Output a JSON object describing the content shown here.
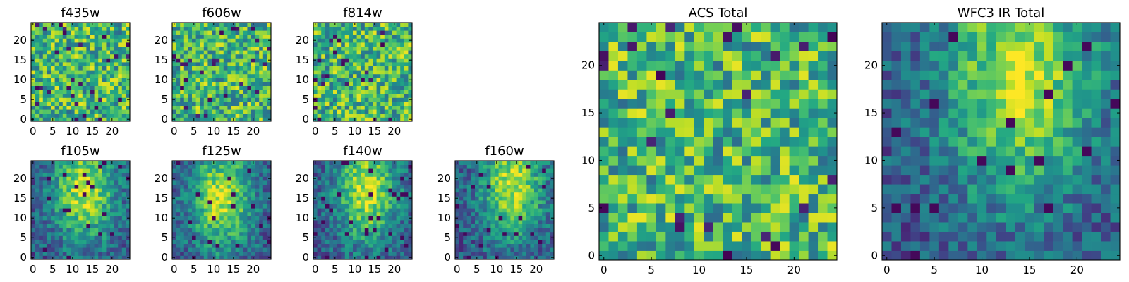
{
  "chart_data": [
    {
      "type": "heatmap",
      "title": "f435w",
      "grid_size": 25,
      "xlim": [
        0,
        24
      ],
      "ylim": [
        0,
        24
      ],
      "x_ticks": [
        0,
        5,
        10,
        15,
        20
      ],
      "y_ticks": [
        0,
        5,
        10,
        15,
        20
      ],
      "colormap": "viridis",
      "spatial_structure": "noise",
      "seed": 11,
      "intensity": "normalized 0-1; dark purple low, yellow high"
    },
    {
      "type": "heatmap",
      "title": "f606w",
      "grid_size": 25,
      "xlim": [
        0,
        24
      ],
      "ylim": [
        0,
        24
      ],
      "x_ticks": [
        0,
        5,
        10,
        15,
        20
      ],
      "y_ticks": [
        0,
        5,
        10,
        15,
        20
      ],
      "colormap": "viridis",
      "spatial_structure": "noise",
      "seed": 23,
      "intensity": "normalized 0-1; dark purple low, yellow high"
    },
    {
      "type": "heatmap",
      "title": "f814w",
      "grid_size": 25,
      "xlim": [
        0,
        24
      ],
      "ylim": [
        0,
        24
      ],
      "x_ticks": [
        0,
        5,
        10,
        15,
        20
      ],
      "y_ticks": [
        0,
        5,
        10,
        15,
        20
      ],
      "colormap": "viridis",
      "spatial_structure": "noise",
      "seed": 37,
      "intensity": "normalized 0-1; dark purple low, yellow high"
    },
    {
      "type": "heatmap",
      "title": "f105w",
      "grid_size": 25,
      "xlim": [
        0,
        24
      ],
      "ylim": [
        0,
        24
      ],
      "x_ticks": [
        0,
        5,
        10,
        15,
        20
      ],
      "y_ticks": [
        0,
        5,
        10,
        15,
        20
      ],
      "colormap": "viridis",
      "spatial_structure": "smooth source",
      "source_center": [
        13,
        17
      ],
      "seed": 41,
      "intensity": "normalized 0-1; dark purple low, yellow high"
    },
    {
      "type": "heatmap",
      "title": "f125w",
      "grid_size": 25,
      "xlim": [
        0,
        24
      ],
      "ylim": [
        0,
        24
      ],
      "x_ticks": [
        0,
        5,
        10,
        15,
        20
      ],
      "y_ticks": [
        0,
        5,
        10,
        15,
        20
      ],
      "colormap": "viridis",
      "spatial_structure": "smooth source",
      "source_center": [
        12,
        15
      ],
      "seed": 53,
      "intensity": "normalized 0-1; dark purple low, yellow high"
    },
    {
      "type": "heatmap",
      "title": "f140w",
      "grid_size": 25,
      "xlim": [
        0,
        24
      ],
      "ylim": [
        0,
        24
      ],
      "x_ticks": [
        0,
        5,
        10,
        15,
        20
      ],
      "y_ticks": [
        0,
        5,
        10,
        15,
        20
      ],
      "colormap": "viridis",
      "spatial_structure": "smooth source",
      "source_center": [
        13,
        17
      ],
      "seed": 67,
      "intensity": "normalized 0-1; dark purple low, yellow high"
    },
    {
      "type": "heatmap",
      "title": "f160w",
      "grid_size": 25,
      "xlim": [
        0,
        24
      ],
      "ylim": [
        0,
        24
      ],
      "x_ticks": [
        0,
        5,
        10,
        15,
        20
      ],
      "y_ticks": [
        0,
        5,
        10,
        15,
        20
      ],
      "colormap": "viridis",
      "spatial_structure": "smooth source",
      "source_center": [
        14,
        18
      ],
      "seed": 79,
      "intensity": "normalized 0-1; dark purple low, yellow high"
    },
    {
      "type": "heatmap",
      "title": "ACS Total",
      "grid_size": 25,
      "xlim": [
        0,
        24
      ],
      "ylim": [
        0,
        24
      ],
      "x_ticks": [
        0,
        5,
        10,
        15,
        20
      ],
      "y_ticks": [
        0,
        5,
        10,
        15,
        20
      ],
      "colormap": "viridis",
      "spatial_structure": "noise",
      "seed": 97,
      "intensity": "normalized 0-1; dark purple low, yellow high"
    },
    {
      "type": "heatmap",
      "title": "WFC3 IR Total",
      "grid_size": 25,
      "xlim": [
        0,
        24
      ],
      "ylim": [
        0,
        24
      ],
      "x_ticks": [
        0,
        5,
        10,
        15,
        20
      ],
      "y_ticks": [
        0,
        5,
        10,
        15,
        20
      ],
      "colormap": "viridis",
      "spatial_structure": "smooth source",
      "source_center": [
        14,
        19
      ],
      "seed": 103,
      "intensity": "normalized 0-1; dark purple low, yellow high"
    }
  ]
}
